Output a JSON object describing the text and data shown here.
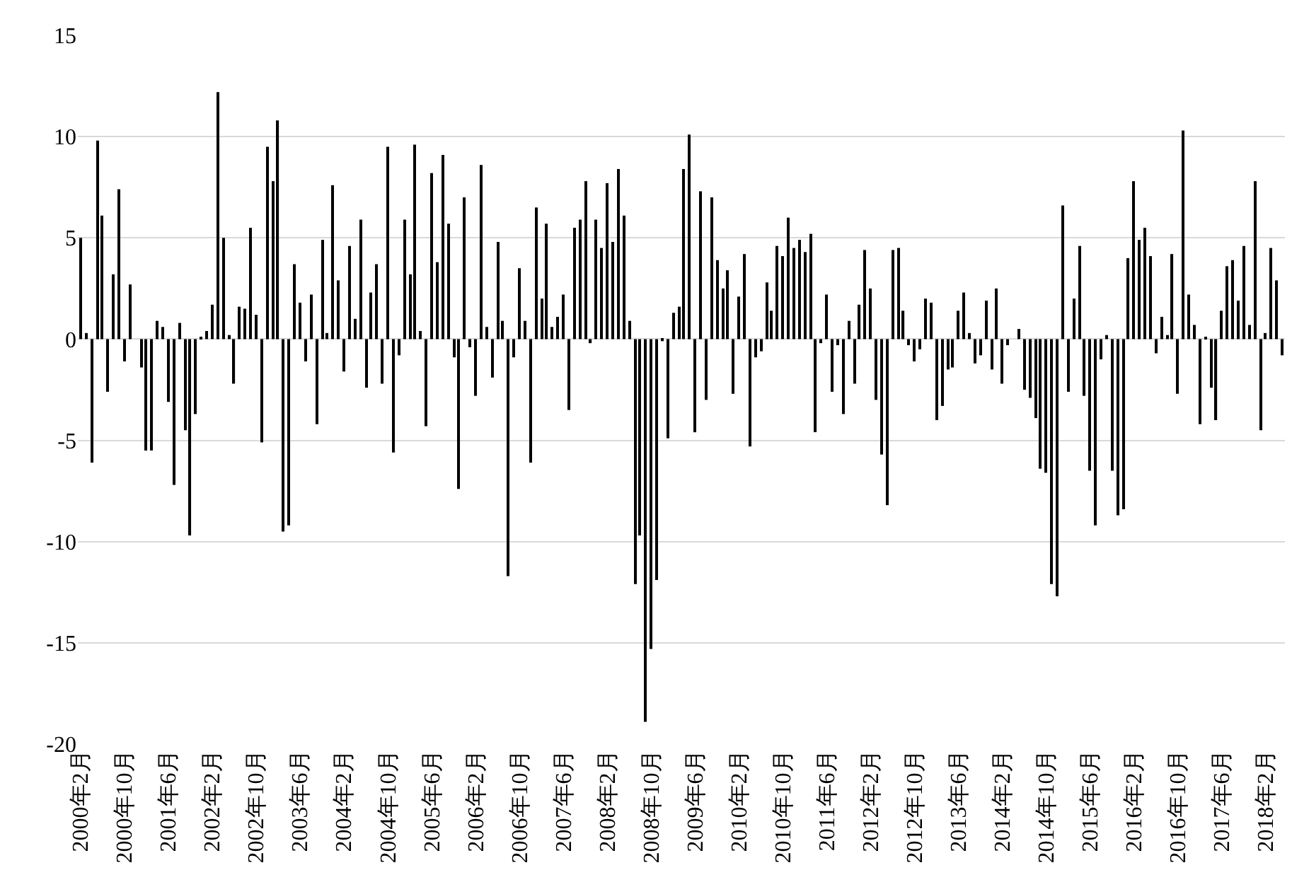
{
  "chart_data": {
    "type": "bar",
    "categories": [
      "2000年2月",
      null,
      null,
      null,
      null,
      null,
      null,
      null,
      "2000年10月",
      null,
      null,
      null,
      null,
      null,
      null,
      null,
      "2001年6月",
      null,
      null,
      null,
      null,
      null,
      null,
      null,
      "2002年2月",
      null,
      null,
      null,
      null,
      null,
      null,
      null,
      "2002年10月",
      null,
      null,
      null,
      null,
      null,
      null,
      null,
      "2003年6月",
      null,
      null,
      null,
      null,
      null,
      null,
      null,
      "2004年2月",
      null,
      null,
      null,
      null,
      null,
      null,
      null,
      "2004年10月",
      null,
      null,
      null,
      null,
      null,
      null,
      null,
      "2005年6月",
      null,
      null,
      null,
      null,
      null,
      null,
      null,
      "2006年2月",
      null,
      null,
      null,
      null,
      null,
      null,
      null,
      "2006年10月",
      null,
      null,
      null,
      null,
      null,
      null,
      null,
      "2007年6月",
      null,
      null,
      null,
      null,
      null,
      null,
      null,
      "2008年2月",
      null,
      null,
      null,
      null,
      null,
      null,
      null,
      "2008年10月",
      null,
      null,
      null,
      null,
      null,
      null,
      null,
      "2009年6月",
      null,
      null,
      null,
      null,
      null,
      null,
      null,
      "2010年2月",
      null,
      null,
      null,
      null,
      null,
      null,
      null,
      "2010年10月",
      null,
      null,
      null,
      null,
      null,
      null,
      null,
      "2011年6月",
      null,
      null,
      null,
      null,
      null,
      null,
      null,
      "2012年2月",
      null,
      null,
      null,
      null,
      null,
      null,
      null,
      "2012年10月",
      null,
      null,
      null,
      null,
      null,
      null,
      null,
      "2013年6月",
      null,
      null,
      null,
      null,
      null,
      null,
      null,
      "2014年2月",
      null,
      null,
      null,
      null,
      null,
      null,
      null,
      "2014年10月",
      null,
      null,
      null,
      null,
      null,
      null,
      null,
      "2015年6月",
      null,
      null,
      null,
      null,
      null,
      null,
      null,
      "2016年2月",
      null,
      null,
      null,
      null,
      null,
      null,
      null,
      "2016年10月",
      null,
      null,
      null,
      null,
      null,
      null,
      null,
      "2017年6月",
      null,
      null,
      null,
      null,
      null,
      null,
      null,
      "2018年2月",
      null,
      null,
      null
    ],
    "values": [
      5.0,
      0.3,
      -6.1,
      9.8,
      6.1,
      -2.6,
      3.2,
      7.4,
      -1.1,
      2.7,
      0,
      -1.4,
      -5.5,
      -5.5,
      0.9,
      0.6,
      -3.1,
      -7.2,
      0.8,
      -4.5,
      -9.7,
      -3.7,
      0.1,
      0.4,
      1.7,
      12.2,
      5.0,
      0.2,
      -2.2,
      1.6,
      1.5,
      5.5,
      1.2,
      -5.1,
      9.5,
      7.8,
      10.8,
      -9.5,
      -9.2,
      3.7,
      1.8,
      -1.1,
      2.2,
      -4.2,
      4.9,
      0.3,
      7.6,
      2.9,
      -1.6,
      4.6,
      1.0,
      5.9,
      -2.4,
      2.3,
      3.7,
      -2.2,
      9.5,
      -5.6,
      -0.8,
      5.9,
      3.2,
      9.6,
      0.4,
      -4.3,
      8.2,
      3.8,
      9.1,
      5.7,
      -0.9,
      -7.4,
      7.0,
      -0.4,
      -2.8,
      8.6,
      0.6,
      -1.9,
      4.8,
      0.9,
      -11.7,
      -0.9,
      3.5,
      0.9,
      -6.1,
      6.5,
      2.0,
      5.7,
      0.6,
      1.1,
      2.2,
      -3.5,
      5.5,
      5.9,
      7.8,
      -0.2,
      5.9,
      4.5,
      7.7,
      4.8,
      8.4,
      6.1,
      0.9,
      -12.1,
      -9.7,
      -18.9,
      -15.3,
      -11.9,
      -0.1,
      -4.9,
      1.3,
      1.6,
      8.4,
      10.1,
      -4.6,
      7.3,
      -3.0,
      7.0,
      3.9,
      2.5,
      3.4,
      -2.7,
      2.1,
      4.2,
      -5.3,
      -0.9,
      -0.6,
      2.8,
      1.4,
      4.6,
      4.1,
      6.0,
      4.5,
      4.9,
      4.3,
      5.2,
      -4.6,
      -0.2,
      2.2,
      -2.6,
      -0.3,
      -3.7,
      0.9,
      -2.2,
      1.7,
      4.4,
      2.5,
      -3.0,
      -5.7,
      -8.2,
      4.4,
      4.5,
      1.4,
      -0.3,
      -1.1,
      -0.5,
      2.0,
      1.8,
      -4.0,
      -3.3,
      -1.5,
      -1.4,
      1.4,
      2.3,
      0.3,
      -1.2,
      -0.8,
      1.9,
      -1.5,
      2.5,
      -2.2,
      -0.3,
      0,
      0.5,
      -2.5,
      -2.9,
      -3.9,
      -6.4,
      -6.6,
      -12.1,
      -12.7,
      6.6,
      -2.6,
      2.0,
      4.6,
      -2.8,
      -6.5,
      -9.2,
      -1.0,
      0.2,
      -6.5,
      -8.7,
      -8.4,
      4.0,
      7.8,
      4.9,
      5.5,
      4.1,
      -0.7,
      1.1,
      0.2,
      4.2,
      -2.7,
      10.3,
      2.2,
      0.7,
      -4.2,
      0.1,
      -2.4,
      -4.0,
      1.4,
      3.6,
      3.9,
      1.9,
      4.6,
      0.7,
      7.8,
      -4.5,
      0.3,
      4.5,
      2.9,
      -0.8
    ],
    "color": "#000000",
    "ylim": [
      -20,
      15
    ],
    "yticks": [
      -20,
      -15,
      -10,
      -5,
      0,
      5,
      10,
      15
    ],
    "grid": "y",
    "legend": false
  }
}
